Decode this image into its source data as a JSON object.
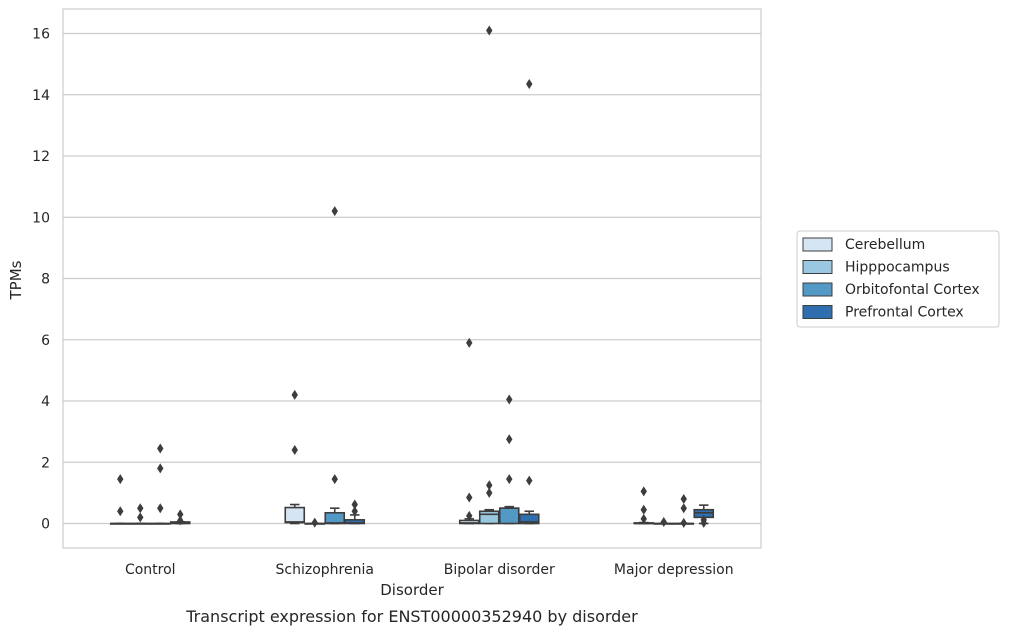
{
  "caption": "Transcript expression for ENST00000352940 by disorder",
  "chart_data": {
    "type": "box",
    "xlabel": "Disorder",
    "ylabel": "TPMs",
    "categories": [
      "Control",
      "Schizophrenia",
      "Bipolar disorder",
      "Major depression"
    ],
    "ylim": [
      -0.8,
      16.8
    ],
    "yticks": [
      0,
      2,
      4,
      6,
      8,
      10,
      12,
      14,
      16
    ],
    "grid": true,
    "legend_position": "right",
    "series": [
      {
        "name": "Cerebellum",
        "color": "#d6e5f4",
        "boxes": [
          {
            "q1": 0,
            "median": 0,
            "q3": 0,
            "whisker_low": 0,
            "whisker_high": 0,
            "outliers": [
              1.45,
              0.4
            ]
          },
          {
            "q1": 0.03,
            "median": 0.05,
            "q3": 0.52,
            "whisker_low": 0,
            "whisker_high": 0.62,
            "outliers": [
              4.2,
              2.4
            ]
          },
          {
            "q1": 0,
            "median": 0.02,
            "q3": 0.1,
            "whisker_low": 0,
            "whisker_high": 0.15,
            "outliers": [
              5.9,
              0.85,
              0.25
            ]
          },
          {
            "q1": 0,
            "median": 0,
            "q3": 0.02,
            "whisker_low": 0,
            "whisker_high": 0.03,
            "outliers": [
              1.05,
              0.45,
              0.15
            ]
          }
        ]
      },
      {
        "name": "Hipppocampus",
        "color": "#9ac8e0",
        "boxes": [
          {
            "q1": 0,
            "median": 0,
            "q3": 0,
            "whisker_low": 0,
            "whisker_high": 0,
            "outliers": [
              0.5,
              0.2
            ]
          },
          {
            "q1": 0,
            "median": 0,
            "q3": 0,
            "whisker_low": 0,
            "whisker_high": 0,
            "outliers": [
              0.03
            ]
          },
          {
            "q1": 0,
            "median": 0.3,
            "q3": 0.4,
            "whisker_low": 0,
            "whisker_high": 0.45,
            "outliers": [
              16.1,
              1.25,
              1.0
            ]
          },
          {
            "q1": 0,
            "median": 0,
            "q3": 0,
            "whisker_low": 0,
            "whisker_high": 0,
            "outliers": [
              0.05
            ]
          }
        ]
      },
      {
        "name": "Orbitofontal Cortex",
        "color": "#5399c6",
        "boxes": [
          {
            "q1": 0,
            "median": 0,
            "q3": 0,
            "whisker_low": 0,
            "whisker_high": 0,
            "outliers": [
              2.45,
              1.8,
              0.5
            ]
          },
          {
            "q1": 0,
            "median": 0.02,
            "q3": 0.35,
            "whisker_low": 0,
            "whisker_high": 0.5,
            "outliers": [
              10.2,
              1.45
            ]
          },
          {
            "q1": 0,
            "median": 0.5,
            "q3": 0.5,
            "whisker_low": 0,
            "whisker_high": 0.55,
            "outliers": [
              4.05,
              2.75,
              1.45
            ]
          },
          {
            "q1": 0,
            "median": 0,
            "q3": 0,
            "whisker_low": 0,
            "whisker_high": 0,
            "outliers": [
              0.8,
              0.5,
              0.02
            ]
          }
        ]
      },
      {
        "name": "Prefrontal Cortex",
        "color": "#2f6fb0",
        "boxes": [
          {
            "q1": 0,
            "median": 0.02,
            "q3": 0.05,
            "whisker_low": 0,
            "whisker_high": 0.05,
            "outliers": [
              0.3,
              0.1
            ]
          },
          {
            "q1": 0,
            "median": 0.02,
            "q3": 0.12,
            "whisker_low": 0,
            "whisker_high": 0.28,
            "outliers": [
              0.62,
              0.4
            ]
          },
          {
            "q1": 0,
            "median": 0.05,
            "q3": 0.3,
            "whisker_low": 0,
            "whisker_high": 0.4,
            "outliers": [
              14.35,
              1.4
            ]
          },
          {
            "q1": 0.2,
            "median": 0.35,
            "q3": 0.45,
            "whisker_low": 0,
            "whisker_high": 0.6,
            "outliers": [
              0.12,
              0.02
            ]
          }
        ]
      }
    ]
  }
}
